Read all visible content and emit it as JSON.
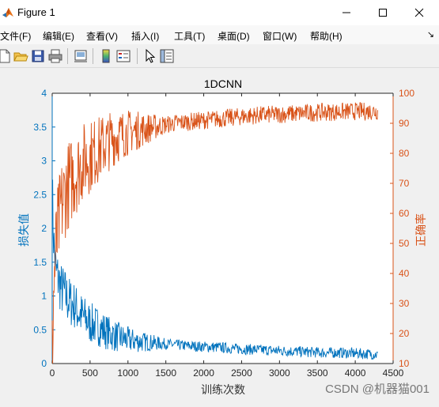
{
  "window": {
    "title": "Figure 1",
    "controls": {
      "minimize": "—",
      "maximize": "☐",
      "close": "✕"
    }
  },
  "menubar": {
    "items": [
      {
        "label": "文件(F)"
      },
      {
        "label": "编辑(E)"
      },
      {
        "label": "查看(V)"
      },
      {
        "label": "插入(I)"
      },
      {
        "label": "工具(T)"
      },
      {
        "label": "桌面(D)"
      },
      {
        "label": "窗口(W)"
      },
      {
        "label": "帮助(H)"
      }
    ],
    "overflow": "↘"
  },
  "toolbar": {
    "buttons": [
      "new-figure-icon",
      "open-file-icon",
      "save-icon",
      "print-icon",
      "link-plot-icon",
      "colorbar-icon",
      "legend-icon",
      "pointer-icon",
      "property-inspector-icon"
    ]
  },
  "chart_data": {
    "type": "line",
    "title": "1DCNN",
    "xlabel": "训练次数",
    "ylabel_left": "损失值",
    "ylabel_right": "正确率",
    "xlim": [
      0,
      4500
    ],
    "ylim_left": [
      0,
      4
    ],
    "ylim_right": [
      10,
      100
    ],
    "x_ticks": [
      0,
      500,
      1000,
      1500,
      2000,
      2500,
      3000,
      3500,
      4000,
      4500
    ],
    "y_ticks_left": [
      0,
      0.5,
      1,
      1.5,
      2,
      2.5,
      3,
      3.5,
      4
    ],
    "y_ticks_right": [
      10,
      20,
      30,
      40,
      50,
      60,
      70,
      80,
      90,
      100
    ],
    "colors": {
      "loss": "#0072BD",
      "accuracy": "#D95319"
    },
    "series": [
      {
        "name": "损失值",
        "axis": "left",
        "x": [
          0,
          20,
          50,
          80,
          120,
          160,
          200,
          250,
          300,
          350,
          400,
          450,
          500,
          600,
          700,
          800,
          900,
          1000,
          1200,
          1400,
          1600,
          1800,
          2000,
          2200,
          2400,
          2600,
          2800,
          3000,
          3200,
          3400,
          3600,
          3800,
          4000,
          4200,
          4300
        ],
        "y": [
          2.6,
          1.8,
          1.35,
          1.25,
          1.1,
          1.05,
          0.95,
          0.9,
          0.85,
          0.75,
          0.7,
          0.65,
          0.6,
          0.55,
          0.48,
          0.42,
          0.38,
          0.35,
          0.32,
          0.3,
          0.28,
          0.26,
          0.25,
          0.24,
          0.22,
          0.21,
          0.2,
          0.19,
          0.18,
          0.17,
          0.16,
          0.16,
          0.15,
          0.14,
          0.13
        ]
      },
      {
        "name": "正确率",
        "axis": "right",
        "x": [
          0,
          20,
          50,
          80,
          120,
          160,
          200,
          250,
          300,
          350,
          400,
          450,
          500,
          600,
          700,
          800,
          900,
          1000,
          1200,
          1400,
          1600,
          1800,
          2000,
          2200,
          2400,
          2600,
          2800,
          3000,
          3200,
          3400,
          3600,
          3800,
          4000,
          4200,
          4300
        ],
        "y": [
          12,
          35,
          48,
          55,
          62,
          66,
          69,
          71,
          73,
          75,
          77,
          78,
          79,
          81,
          83,
          85,
          86,
          87,
          88,
          89,
          90,
          90.5,
          91,
          91.5,
          92,
          92.5,
          92.8,
          93,
          93.2,
          93.5,
          93.7,
          93.8,
          94,
          94,
          94
        ]
      }
    ],
    "grid": false,
    "legend": "none"
  },
  "watermark": "CSDN @机器猫001"
}
